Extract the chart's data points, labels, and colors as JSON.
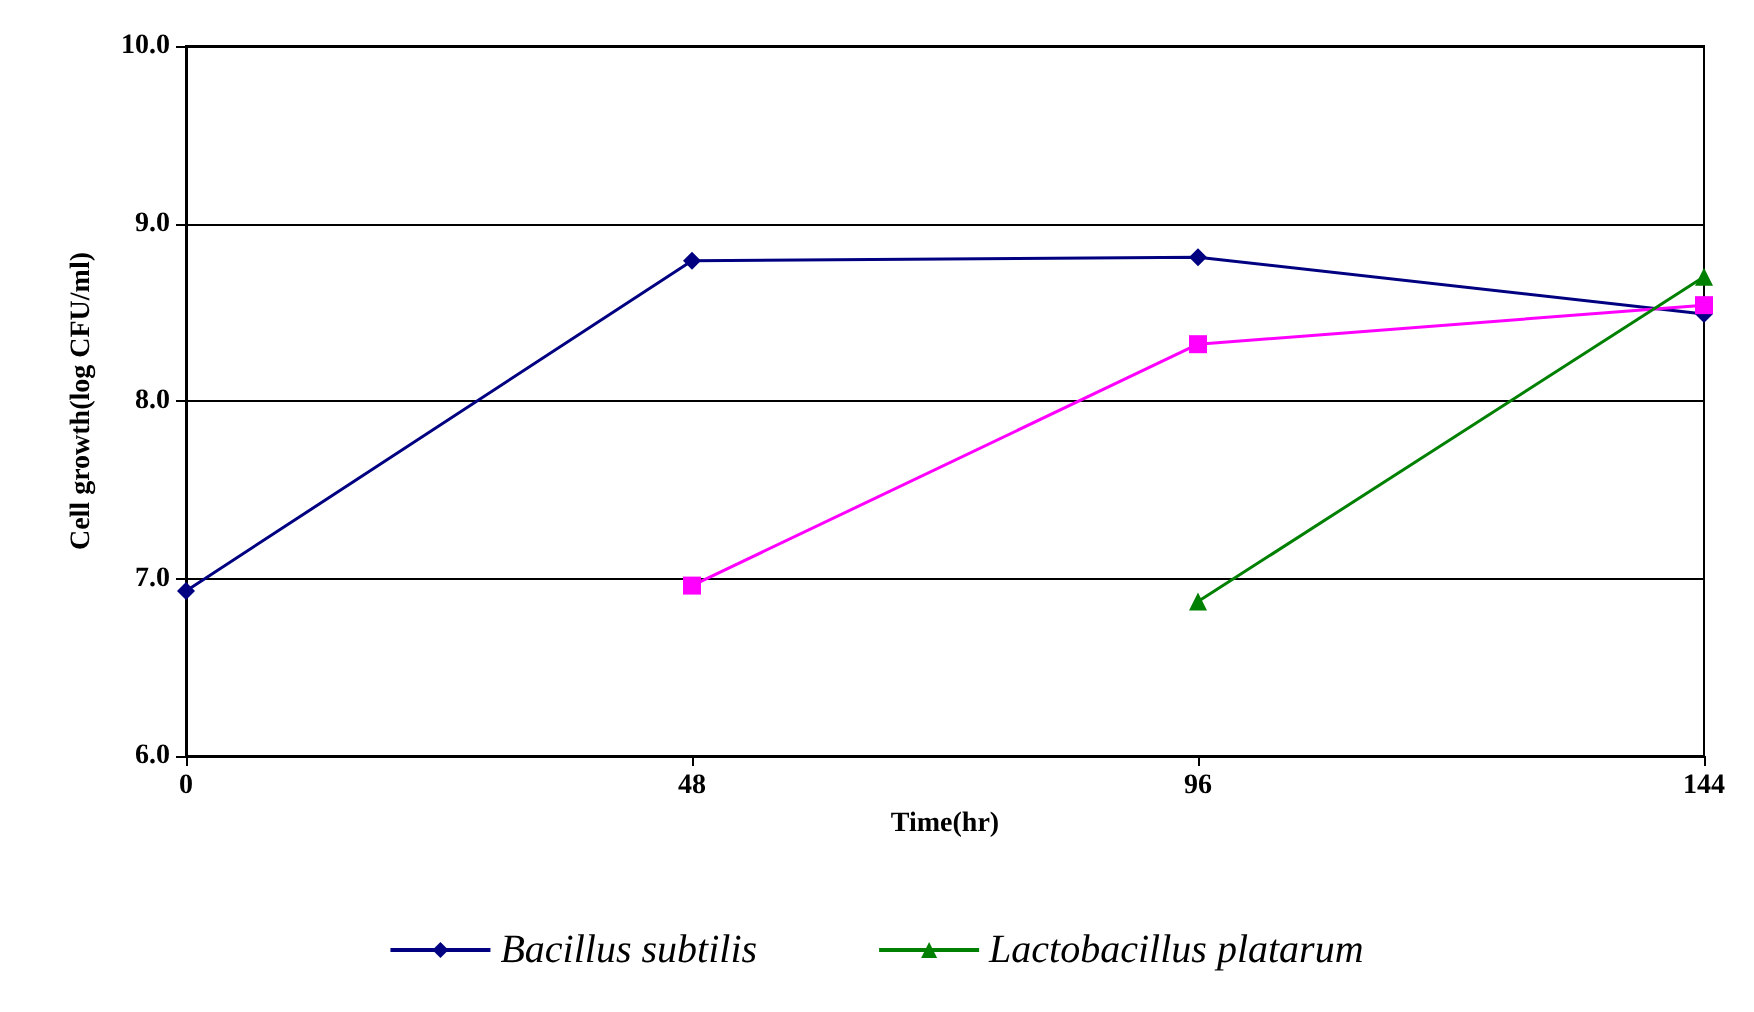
{
  "chart_data": {
    "type": "line",
    "xlabel": "Time(hr)",
    "ylabel": "Cell growth(log CFU/ml)",
    "x": [
      0,
      48,
      96,
      144
    ],
    "series": [
      {
        "name": "Bacillus subtilis",
        "color": "#000080",
        "marker": "diamond",
        "values": [
          6.93,
          8.79,
          8.81,
          8.49
        ]
      },
      {
        "color": "#ff00ff",
        "marker": "square",
        "values": [
          null,
          6.96,
          8.32,
          8.54
        ]
      },
      {
        "name": "Lactobacillus platarum",
        "color": "#008000",
        "marker": "triangle",
        "values": [
          null,
          null,
          6.87,
          8.7
        ]
      }
    ],
    "xlim": [
      0,
      144
    ],
    "xticks": [
      0,
      48,
      96,
      144
    ],
    "ylim": [
      6,
      10
    ],
    "yticks": [
      {
        "value": 6,
        "label": "6.0"
      },
      {
        "value": 7,
        "label": "7.0"
      },
      {
        "value": 8,
        "label": "8.0"
      },
      {
        "value": 9,
        "label": "9.0"
      },
      {
        "value": 10,
        "label": "10.0"
      }
    ],
    "grid": "y",
    "legend": "bottom",
    "line_style": "solid"
  }
}
